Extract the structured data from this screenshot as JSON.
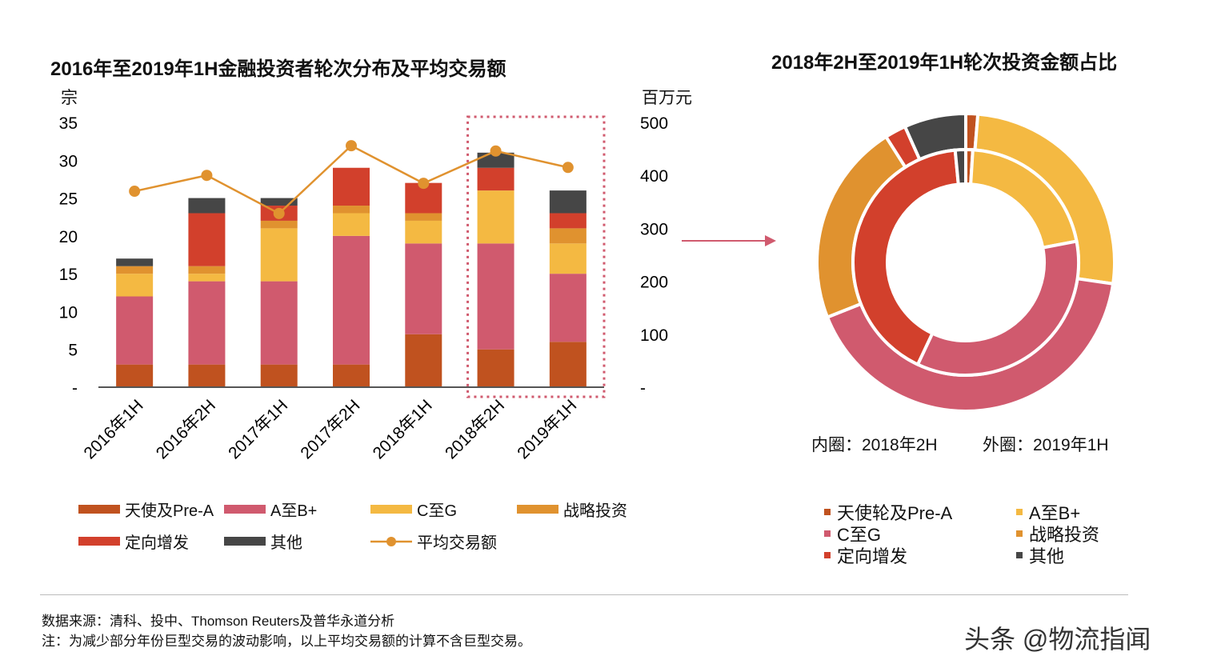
{
  "colors": {
    "angel": "#C0521F",
    "ab": "#D05A6E",
    "cg": "#F4B942",
    "strategic": "#E0922F",
    "directed": "#D2402C",
    "other": "#464646",
    "line": "#E0922F",
    "highlight": "#D05A6E"
  },
  "chart_data": [
    {
      "type": "bar",
      "stacked": true,
      "title": "2016年至2019年1H金融投资者轮次分布及平均交易额",
      "ylabel": "宗",
      "y2label": "百万元",
      "ylim": [
        0,
        35
      ],
      "y2lim": [
        0,
        500
      ],
      "yticks": [
        "-",
        "5",
        "10",
        "15",
        "20",
        "25",
        "30",
        "35"
      ],
      "y2ticks": [
        "-",
        "100",
        "200",
        "300",
        "400",
        "500"
      ],
      "categories": [
        "2016年1H",
        "2016年2H",
        "2017年1H",
        "2017年2H",
        "2018年1H",
        "2018年2H",
        "2019年1H"
      ],
      "series": [
        {
          "name": "天使及Pre-A",
          "key": "angel",
          "values": [
            3,
            3,
            3,
            3,
            7,
            5,
            6
          ]
        },
        {
          "name": "A至B+",
          "key": "ab",
          "values": [
            9,
            11,
            11,
            17,
            12,
            14,
            9
          ]
        },
        {
          "name": "C至G",
          "key": "cg",
          "values": [
            3,
            1,
            7,
            3,
            3,
            7,
            4
          ]
        },
        {
          "name": "战略投资",
          "key": "strategic",
          "values": [
            1,
            1,
            1,
            1,
            1,
            0,
            2
          ]
        },
        {
          "name": "定向增发",
          "key": "directed",
          "values": [
            0,
            7,
            2,
            5,
            4,
            3,
            2
          ]
        },
        {
          "name": "其他",
          "key": "other",
          "values": [
            1,
            2,
            1,
            0,
            0,
            2,
            3
          ]
        }
      ],
      "line": {
        "name": "平均交易额",
        "axis": "right",
        "values": [
          370,
          400,
          328,
          456,
          385,
          446,
          415
        ]
      },
      "highlighted_category": "2018年2H"
    },
    {
      "type": "pie",
      "donut": true,
      "title": "2018年2H至2019年1H轮次投资金额占比",
      "caption_inner": "内圈：2018年2H",
      "caption_outer": "外圈：2019年1H",
      "legend": [
        {
          "name": "天使轮及Pre-A",
          "key": "angel"
        },
        {
          "name": "A至B+",
          "key": "cg"
        },
        {
          "name": "C至G",
          "key": "ab"
        },
        {
          "name": "战略投资",
          "key": "strategic"
        },
        {
          "name": "定向增发",
          "key": "directed"
        },
        {
          "name": "其他",
          "key": "other"
        }
      ],
      "inner": [
        {
          "key": "angel",
          "value": 1
        },
        {
          "key": "cg",
          "value": 21
        },
        {
          "key": "ab",
          "value": 35
        },
        {
          "key": "strategic",
          "value": 0
        },
        {
          "key": "directed",
          "value": 41.5
        },
        {
          "key": "other",
          "value": 1.5
        }
      ],
      "outer": [
        {
          "key": "angel",
          "value": 1.3
        },
        {
          "key": "cg",
          "value": 26
        },
        {
          "key": "ab",
          "value": 41.7
        },
        {
          "key": "strategic",
          "value": 22
        },
        {
          "key": "directed",
          "value": 2.3
        },
        {
          "key": "other",
          "value": 6.7
        }
      ]
    }
  ],
  "footer": {
    "source": "数据来源：清科、投中、Thomson Reuters及普华永道分析",
    "note": "注：为减少部分年份巨型交易的波动影响，以上平均交易额的计算不含巨型交易。"
  },
  "watermark": "头条 @物流指闻"
}
